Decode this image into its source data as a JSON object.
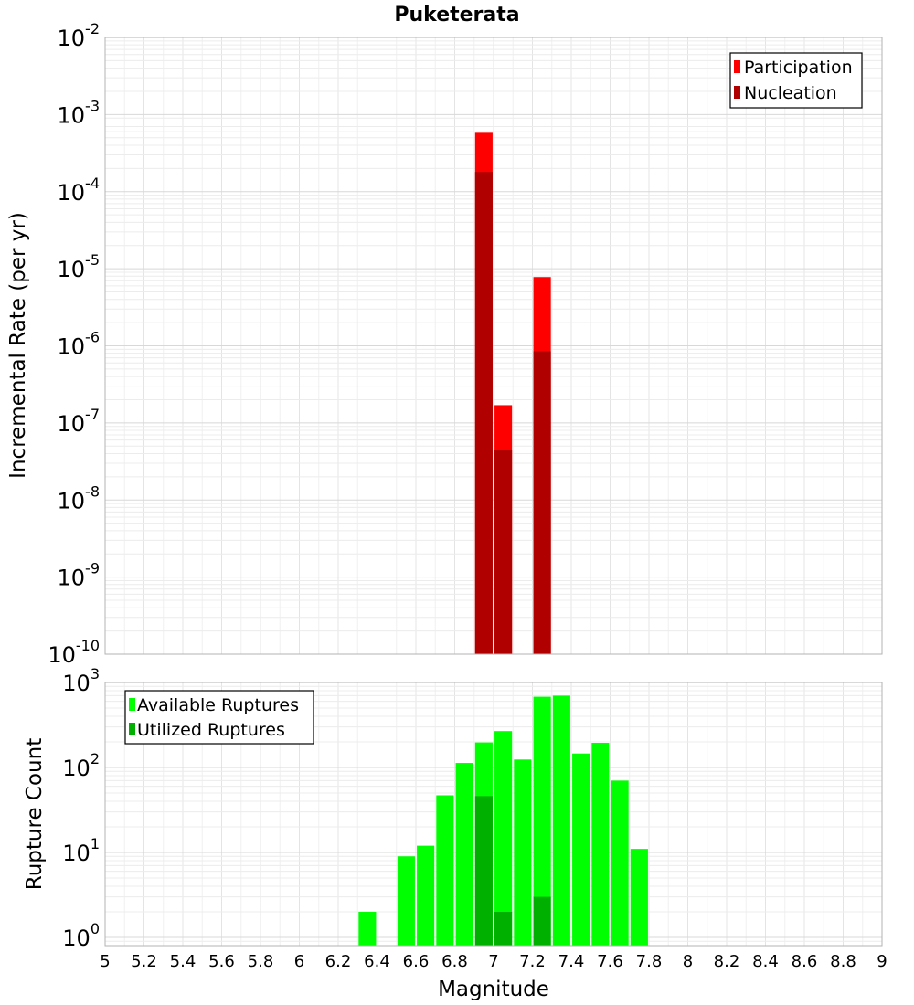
{
  "chart_data": [
    {
      "type": "bar",
      "title": "Puketerata",
      "xlabel": "",
      "ylabel": "Incremental Rate (per yr)",
      "yscale": "log",
      "xlim": [
        5,
        9
      ],
      "ylim": [
        1e-10,
        0.01
      ],
      "grid": true,
      "legend_position": "top-right",
      "bar_width": 0.09,
      "y_ticks": [
        {
          "base": "10",
          "exp": "-2",
          "value": 0.01
        },
        {
          "base": "10",
          "exp": "-3",
          "value": 0.001
        },
        {
          "base": "10",
          "exp": "-4",
          "value": 0.0001
        },
        {
          "base": "10",
          "exp": "-5",
          "value": 1e-05
        },
        {
          "base": "10",
          "exp": "-6",
          "value": 1e-06
        },
        {
          "base": "10",
          "exp": "-7",
          "value": 1e-07
        },
        {
          "base": "10",
          "exp": "-8",
          "value": 1e-08
        },
        {
          "base": "10",
          "exp": "-9",
          "value": 1e-09
        },
        {
          "base": "10",
          "exp": "-10",
          "value": 1e-10
        }
      ],
      "series": [
        {
          "name": "Participation",
          "color": "#ff0000",
          "points": [
            {
              "x": 6.95,
              "y": 0.00058
            },
            {
              "x": 7.05,
              "y": 1.7e-07
            },
            {
              "x": 7.25,
              "y": 7.8e-06
            }
          ]
        },
        {
          "name": "Nucleation",
          "color": "#b00000",
          "points": [
            {
              "x": 6.95,
              "y": 0.00018
            },
            {
              "x": 7.05,
              "y": 4.5e-08
            },
            {
              "x": 7.25,
              "y": 8.5e-07
            }
          ]
        }
      ]
    },
    {
      "type": "bar",
      "xlabel": "Magnitude",
      "ylabel": "Rupture Count",
      "yscale": "log",
      "xlim": [
        5,
        9
      ],
      "ylim": [
        0.8,
        1000
      ],
      "grid": true,
      "legend_position": "top-left",
      "bar_width": 0.09,
      "x_ticks": [
        "5",
        "5.2",
        "5.4",
        "5.6",
        "5.8",
        "6",
        "6.2",
        "6.4",
        "6.6",
        "6.8",
        "7",
        "7.2",
        "7.4",
        "7.6",
        "7.8",
        "8",
        "8.2",
        "8.4",
        "8.6",
        "8.8",
        "9"
      ],
      "y_ticks": [
        {
          "base": "10",
          "exp": "3",
          "value": 1000
        },
        {
          "base": "10",
          "exp": "2",
          "value": 100
        },
        {
          "base": "10",
          "exp": "1",
          "value": 10
        },
        {
          "base": "10",
          "exp": "0",
          "value": 1
        }
      ],
      "series": [
        {
          "name": "Available Ruptures",
          "color": "#00ff00",
          "points": [
            {
              "x": 6.35,
              "y": 2
            },
            {
              "x": 6.55,
              "y": 9
            },
            {
              "x": 6.65,
              "y": 12
            },
            {
              "x": 6.75,
              "y": 47
            },
            {
              "x": 6.85,
              "y": 113
            },
            {
              "x": 6.95,
              "y": 197
            },
            {
              "x": 7.05,
              "y": 268
            },
            {
              "x": 7.15,
              "y": 124
            },
            {
              "x": 7.25,
              "y": 680
            },
            {
              "x": 7.35,
              "y": 700
            },
            {
              "x": 7.45,
              "y": 146
            },
            {
              "x": 7.55,
              "y": 195
            },
            {
              "x": 7.65,
              "y": 70
            },
            {
              "x": 7.75,
              "y": 11
            }
          ]
        },
        {
          "name": "Utilized Ruptures",
          "color": "#00b000",
          "points": [
            {
              "x": 6.95,
              "y": 46
            },
            {
              "x": 7.05,
              "y": 2
            },
            {
              "x": 7.25,
              "y": 3
            }
          ]
        }
      ]
    }
  ]
}
